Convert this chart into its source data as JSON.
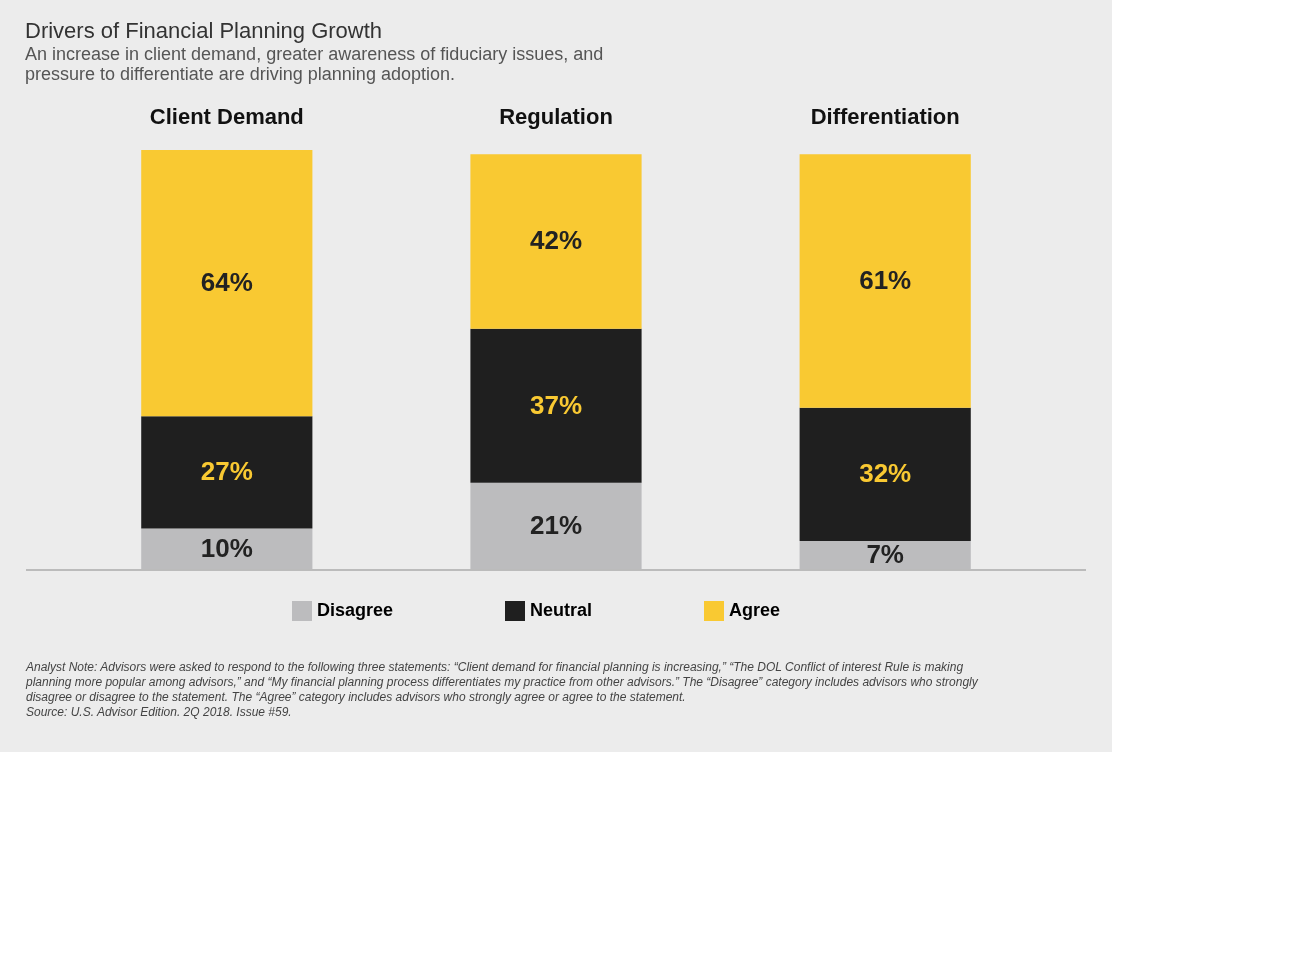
{
  "chart_data": {
    "type": "bar",
    "stacked": true,
    "title": "Drivers of Financial Planning Growth",
    "subtitle": "An increase in client demand, greater awareness of fiduciary issues, and pressure to differentiate are driving planning adoption.",
    "categories": [
      "Client Demand",
      "Regulation",
      "Differentiation"
    ],
    "series": [
      {
        "name": "Disagree",
        "color": "#bcbcbe",
        "values": [
          10,
          21,
          7
        ],
        "value_labels": [
          "10%",
          "21%",
          "7%"
        ]
      },
      {
        "name": "Neutral",
        "color": "#1f1f1f",
        "values": [
          27,
          37,
          32
        ],
        "value_labels": [
          "27%",
          "37%",
          "32%"
        ]
      },
      {
        "name": "Agree",
        "color": "#f9c932",
        "values": [
          64,
          42,
          61
        ],
        "value_labels": [
          "64%",
          "42%",
          "61%"
        ]
      }
    ],
    "legend": "bottom",
    "grid": false,
    "annotations": [
      "Analyst Note: Advisors were asked to respond to the following three statements: “Client demand for financial planning is increasing,” “The DOL Conflict of interest Rule is making planning more popular among advisors,” and “My financial planning process differentiates my practice from other advisors.” The “Disagree” category includes advisors who strongly disagree or disagree to the statement. The “Agree” category includes advisors who strongly agree or agree to the statement.",
      "Source: U.S. Advisor Edition. 2Q 2018. Issue #59."
    ]
  }
}
